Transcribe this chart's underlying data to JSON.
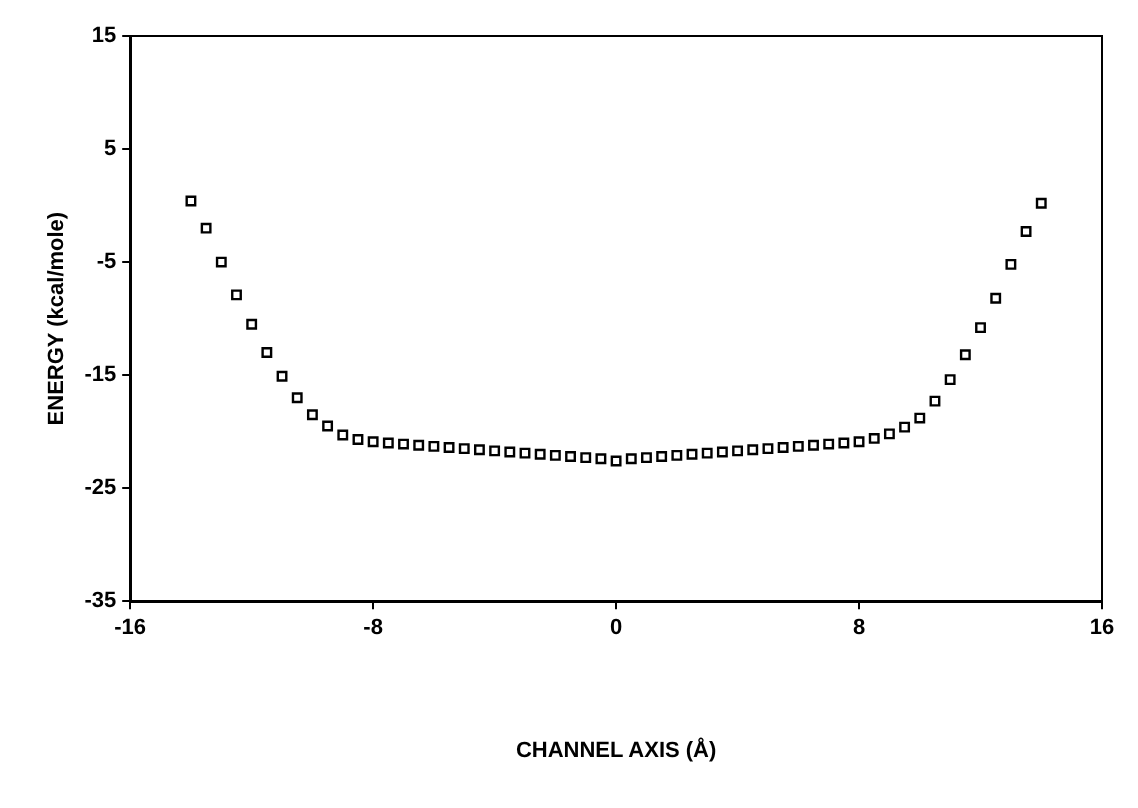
{
  "chart_data": {
    "type": "scatter",
    "xlabel": "CHANNEL AXIS (Å)",
    "ylabel": "ENERGY (kcal/mole)",
    "x": [
      -14,
      -13.5,
      -13,
      -12.5,
      -12,
      -11.5,
      -11,
      -10.5,
      -10,
      -9.5,
      -9,
      -8.5,
      -8,
      -7.5,
      -7,
      -6.5,
      -6,
      -5.5,
      -5,
      -4.5,
      -4,
      -3.5,
      -3,
      -2.5,
      -2,
      -1.5,
      -1,
      -0.5,
      0,
      0.5,
      1,
      1.5,
      2,
      2.5,
      3,
      3.5,
      4,
      4.5,
      5,
      5.5,
      6,
      6.5,
      7,
      7.5,
      8,
      8.5,
      9,
      9.5,
      10,
      10.5,
      11,
      11.5,
      12,
      12.5,
      13,
      13.5,
      14
    ],
    "series": [
      {
        "color": "#000000",
        "values": [
          0.4,
          -2.0,
          -5.0,
          -7.9,
          -10.5,
          -13.0,
          -15.1,
          -17.0,
          -18.5,
          -19.5,
          -20.3,
          -20.7,
          -20.9,
          -21.0,
          -21.1,
          -21.2,
          -21.3,
          -21.4,
          -21.5,
          -21.6,
          -21.7,
          -21.8,
          -21.9,
          -22.0,
          -22.1,
          -22.2,
          -22.3,
          -22.4,
          -22.6,
          -22.4,
          -22.3,
          -22.2,
          -22.1,
          -22.0,
          -21.9,
          -21.8,
          -21.7,
          -21.6,
          -21.5,
          -21.4,
          -21.3,
          -21.2,
          -21.1,
          -21.0,
          -20.9,
          -20.6,
          -20.2,
          -19.6,
          -18.8,
          -17.3,
          -15.4,
          -13.2,
          -10.8,
          -8.2,
          -5.2,
          -2.3,
          0.2
        ]
      }
    ],
    "xlim": [
      -16,
      16
    ],
    "xticks": [
      -16,
      -8,
      0,
      8,
      16
    ],
    "ylim": [
      -35,
      15
    ],
    "yticks": [
      -35,
      -25,
      -15,
      -5,
      5,
      15
    ],
    "grid": false,
    "legend": false,
    "marker": "square"
  }
}
